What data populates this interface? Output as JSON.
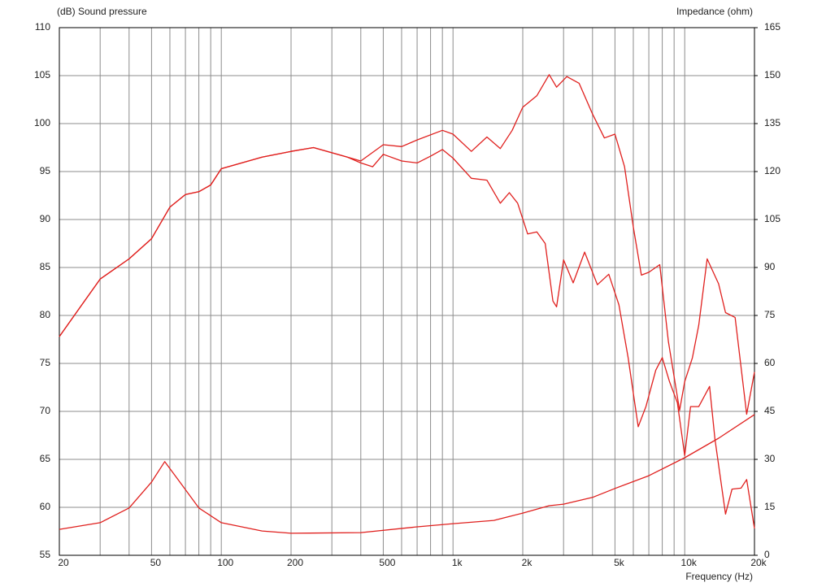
{
  "chart_data": {
    "type": "line",
    "y_label": "(dB)  Sound pressure",
    "y2_label": "Impedance  (ohm)",
    "x_label": "Frequency  (Hz)",
    "xscale": "log",
    "grid": true,
    "xlim": [
      20,
      20000
    ],
    "xticks": [
      20,
      50,
      100,
      200,
      500,
      {
        "value": 1000,
        "label": "1k"
      },
      {
        "value": 2000,
        "label": "2k"
      },
      {
        "value": 5000,
        "label": "5k"
      },
      {
        "value": 10000,
        "label": "10k"
      },
      {
        "value": 20000,
        "label": "20k"
      }
    ],
    "ylim": [
      55,
      110
    ],
    "yticks": [
      55,
      60,
      65,
      70,
      75,
      80,
      85,
      90,
      95,
      100,
      105,
      110
    ],
    "y2lim": [
      0,
      165
    ],
    "y2ticks": [
      0,
      15,
      30,
      45,
      60,
      75,
      90,
      105,
      120,
      135,
      150,
      165
    ],
    "series": [
      {
        "color": "#e0201e",
        "x": [
          20,
          25,
          30,
          40,
          50,
          60,
          70,
          80,
          90,
          100,
          150,
          200,
          250,
          350,
          400,
          500,
          600,
          700,
          900,
          1000,
          1200,
          1400,
          1600,
          1800,
          2000,
          2300,
          2600,
          2800,
          3100,
          3500,
          4000,
          4500,
          5000,
          5500,
          6000,
          6500,
          7000,
          7800,
          8500,
          9500,
          10000,
          10800,
          11500,
          12500,
          14000,
          15000,
          16500,
          18500,
          20000
        ],
        "values": [
          77.8,
          81.1,
          83.8,
          85.9,
          88.0,
          91.3,
          92.6,
          92.9,
          93.6,
          95.3,
          96.5,
          97.1,
          97.5,
          96.5,
          96.1,
          97.8,
          97.6,
          98.3,
          99.3,
          98.9,
          97.1,
          98.6,
          97.4,
          99.3,
          101.7,
          102.9,
          105.1,
          103.8,
          104.9,
          104.2,
          101.0,
          98.5,
          98.9,
          95.5,
          89.2,
          84.2,
          84.5,
          85.3,
          77.3,
          70.1,
          73.1,
          75.6,
          79.0,
          85.9,
          83.3,
          80.3,
          79.8,
          69.7,
          74.1
        ]
      },
      {
        "color": "#e0201e",
        "x": [
          20,
          25,
          30,
          40,
          50,
          60,
          70,
          80,
          90,
          100,
          150,
          200,
          250,
          350,
          400,
          450,
          500,
          600,
          700,
          800,
          900,
          1000,
          1200,
          1400,
          1600,
          1750,
          1900,
          2100,
          2300,
          2500,
          2700,
          2800,
          3000,
          3300,
          3700,
          4200,
          4700,
          5200,
          5700,
          6300,
          6800,
          7500,
          8000,
          8600,
          9300,
          10000,
          10600,
          11500,
          12800,
          13500,
          15000,
          16000,
          17500,
          18500,
          20000
        ],
        "values": [
          77.8,
          81.1,
          83.8,
          85.9,
          88.0,
          91.3,
          92.6,
          92.9,
          93.6,
          95.3,
          96.5,
          97.1,
          97.5,
          96.5,
          95.9,
          95.5,
          96.8,
          96.1,
          95.9,
          96.6,
          97.3,
          96.4,
          94.3,
          94.1,
          91.7,
          92.8,
          91.7,
          88.5,
          88.7,
          87.5,
          81.5,
          80.9,
          85.8,
          83.4,
          86.6,
          83.2,
          84.3,
          81.1,
          75.6,
          68.4,
          70.5,
          74.3,
          75.6,
          73.1,
          70.9,
          65.4,
          70.5,
          70.5,
          72.6,
          67.1,
          59.3,
          61.9,
          62.0,
          62.9,
          57.8
        ]
      },
      {
        "color": "#e0201e",
        "axis": "y2",
        "x": [
          20,
          30,
          40,
          50,
          57,
          65,
          80,
          100,
          150,
          200,
          400,
          700,
          1000,
          1500,
          2000,
          2600,
          3000,
          4000,
          5000,
          7000,
          10000,
          14000,
          20000
        ],
        "values": [
          8.1,
          10.2,
          14.8,
          22.9,
          29.3,
          23.7,
          14.8,
          10.2,
          7.6,
          6.9,
          7.1,
          8.9,
          9.9,
          10.9,
          13.2,
          15.5,
          16.0,
          18.1,
          20.9,
          24.9,
          30.5,
          36.6,
          44.0
        ]
      }
    ]
  }
}
